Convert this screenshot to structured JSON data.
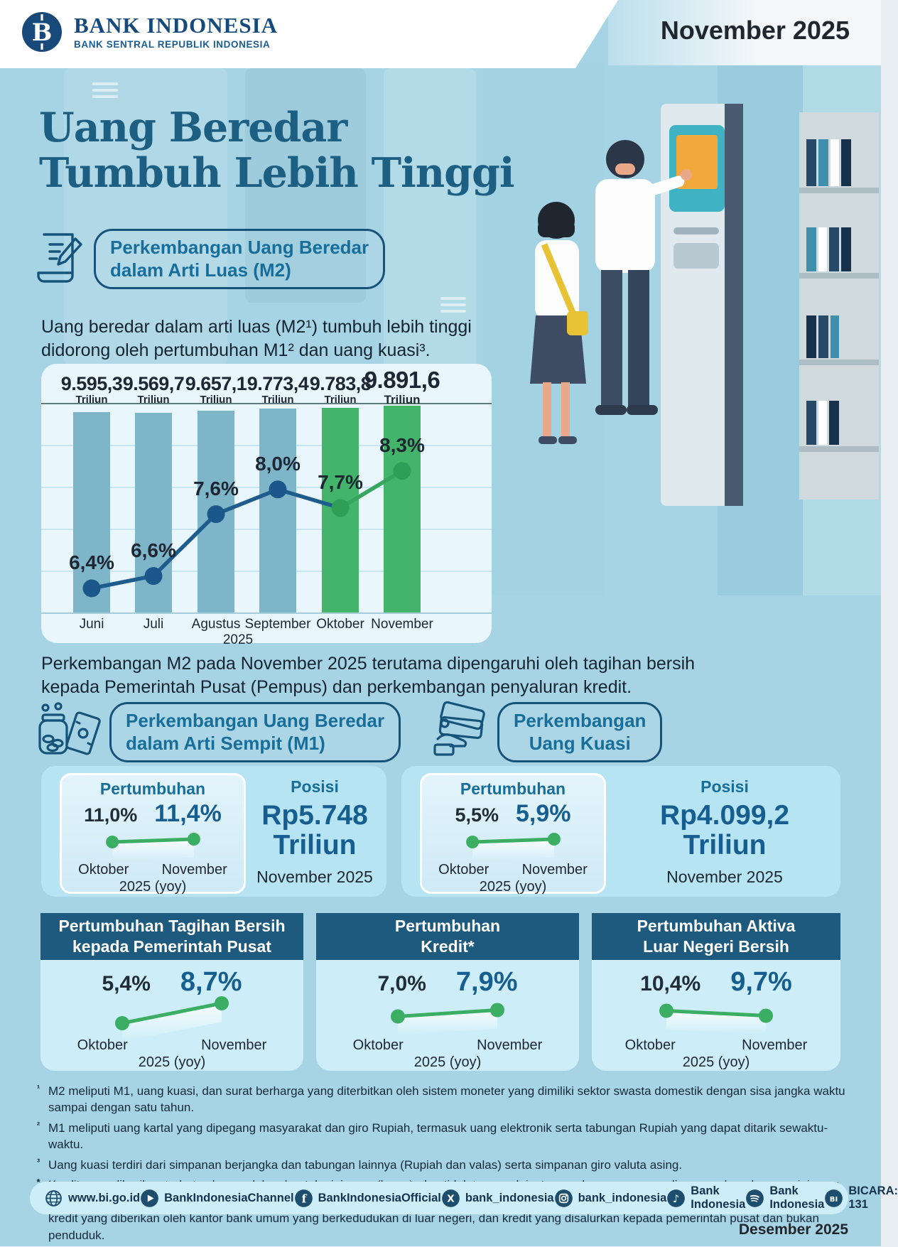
{
  "header": {
    "brand_name": "BANK INDONESIA",
    "brand_subtitle": "BANK SENTRAL REPUBLIK INDONESIA",
    "period_badge": "November 2025"
  },
  "title": {
    "line1": "Uang Beredar",
    "line2": "Tumbuh Lebih Tinggi"
  },
  "sections": {
    "m2": {
      "badge_line1": "Perkembangan Uang Beredar",
      "badge_line2": "dalam Arti Luas (M2)",
      "intro_line1": "Uang beredar dalam arti luas (M2¹) tumbuh lebih tinggi",
      "intro_line2": "didorong oleh pertumbuhan M1² dan uang kuasi³.",
      "note_line1": "Perkembangan M2 pada November 2025 terutama dipengaruhi oleh tagihan bersih",
      "note_line2": "kepada Pemerintah Pusat (Pempus) dan perkembangan penyaluran kredit."
    },
    "m1": {
      "badge_line1": "Perkembangan Uang Beredar",
      "badge_line2": "dalam Arti Sempit (M1)",
      "growth": {
        "title": "Pertumbuhan",
        "prev_label": "11,0%",
        "curr_label": "11,4%",
        "prev_value": 11.0,
        "curr_value": 11.4,
        "prev_month": "Oktober",
        "curr_month": "November",
        "period_note": "2025 (yoy)"
      },
      "position": {
        "title": "Posisi",
        "value_line1": "Rp5.748",
        "value_line2": "Triliun",
        "period": "November 2025"
      }
    },
    "kuasi": {
      "badge_line1": "Perkembangan",
      "badge_line2": "Uang Kuasi",
      "growth": {
        "title": "Pertumbuhan",
        "prev_label": "5,5%",
        "curr_label": "5,9%",
        "prev_value": 5.5,
        "curr_value": 5.9,
        "prev_month": "Oktober",
        "curr_month": "November",
        "period_note": "2025 (yoy)"
      },
      "position": {
        "title": "Posisi",
        "value_line1": "Rp4.099,2",
        "value_line2": "Triliun",
        "period": "November 2025"
      }
    }
  },
  "chart_data": {
    "type": "bar+line",
    "title": "Perkembangan Uang Beredar dalam Arti Luas (M2)",
    "categories": [
      "Juni",
      "Juli",
      "Agustus",
      "September",
      "Oktober",
      "November"
    ],
    "year_label": "2025",
    "bar_series": {
      "name": "Posisi M2",
      "unit": "Triliun",
      "values": [
        9595.3,
        9569.7,
        9657.1,
        9773.4,
        9783.8,
        9891.6
      ],
      "labels": [
        "9.595,3",
        "9.569,7",
        "9.657,1",
        "9.773,4",
        "9.783,8",
        "9.891,6"
      ]
    },
    "line_series": {
      "name": "Pertumbuhan M2 (yoy)",
      "values": [
        6.4,
        6.6,
        7.6,
        8.0,
        7.7,
        8.3
      ],
      "labels": [
        "6,4%",
        "6,6%",
        "7,6%",
        "8,0%",
        "7,7%",
        "8,3%"
      ]
    },
    "highlight_from_index": 4,
    "emphasis_index": 5,
    "legend_position": "none",
    "grid": true
  },
  "bottom_panels": [
    {
      "title_line1": "Pertumbuhan Tagihan Bersih",
      "title_line2": "kepada Pemerintah Pusat",
      "growth": {
        "prev_label": "5,4%",
        "curr_label": "8,7%",
        "prev_value": 5.4,
        "curr_value": 8.7,
        "prev_month": "Oktober",
        "curr_month": "November",
        "period_note": "2025 (yoy)"
      }
    },
    {
      "title_line1": "Pertumbuhan",
      "title_line2": "Kredit*",
      "growth": {
        "prev_label": "7,0%",
        "curr_label": "7,9%",
        "prev_value": 7.0,
        "curr_value": 7.9,
        "prev_month": "Oktober",
        "curr_month": "November",
        "period_note": "2025 (yoy)"
      }
    },
    {
      "title_line1": "Pertumbuhan Aktiva",
      "title_line2": "Luar Negeri Bersih",
      "growth": {
        "prev_label": "10,4%",
        "curr_label": "9,7%",
        "prev_value": 10.4,
        "curr_value": 9.7,
        "prev_month": "Oktober",
        "curr_month": "November",
        "period_note": "2025 (yoy)"
      }
    }
  ],
  "footnotes": [
    {
      "marker": "¹",
      "text": "M2 meliputi M1, uang kuasi, dan surat berharga yang diterbitkan oleh sistem moneter yang dimiliki sektor swasta domestik dengan sisa jangka waktu sampai dengan satu tahun."
    },
    {
      "marker": "²",
      "text": "M1 meliputi uang kartal yang dipegang masyarakat dan giro Rupiah, termasuk uang elektronik serta tabungan Rupiah yang dapat ditarik sewaktu-waktu."
    },
    {
      "marker": "³",
      "text": "Uang kuasi terdiri dari simpanan berjangka dan tabungan lainnya (Rupiah dan valas) serta simpanan giro valuta asing."
    },
    {
      "marker": "*",
      "text": "Kredit yang diberikan terbatas hanya dalam bentuk pinjaman (loans), dan tidak termasuk instrumen keuangan yang dipersamakan dengan pinjaman, seperti surat berharga (debt securities), tagihan akseptasi (banker's acceptances), dan tagihan repo. Selain itu, kredit yang diberikan tidak termasuk kredit yang diberikan oleh kantor bank umum yang berkedudukan di luar negeri, dan kredit yang disalurkan kepada pemerintah pusat dan bukan penduduk."
    }
  ],
  "footer": {
    "items": [
      {
        "icon": "globe-icon",
        "label": "www.bi.go.id"
      },
      {
        "icon": "youtube-icon",
        "label": "BankIndonesiaChannel"
      },
      {
        "icon": "facebook-icon",
        "label": "BankIndonesiaOfficial"
      },
      {
        "icon": "x-icon",
        "label": "bank_indonesia"
      },
      {
        "icon": "instagram-icon",
        "label": "bank_indonesia"
      },
      {
        "icon": "tiktok-icon",
        "label": "Bank Indonesia"
      },
      {
        "icon": "spotify-icon",
        "label": "Bank Indonesia"
      },
      {
        "icon": "bicara-icon",
        "label": "BICARA: 131"
      }
    ],
    "publish_date": "Desember 2025"
  },
  "colors": {
    "page_bg": "#a7d4e4",
    "title_blue": "#1d5f82",
    "badge_blue": "#186e9a",
    "bar_blue": "#7fb5c9",
    "bar_green": "#44b46a",
    "line_blue": "#1e5c8d",
    "line_green": "#36a65f",
    "marker_blue": "#1b578a",
    "marker_green": "#2f9e57",
    "panel_header_navy": "#1d5a7d",
    "value_navy": "#175e90",
    "growth_line_green": "#3cae63"
  }
}
